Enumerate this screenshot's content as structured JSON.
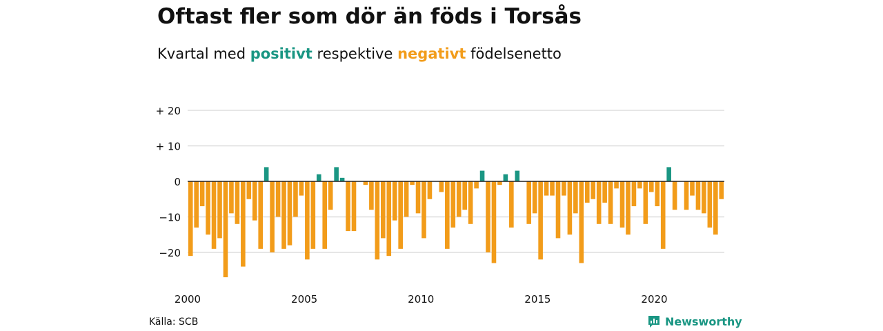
{
  "header": {
    "title": "Oftast fler som dör än föds i Torsås",
    "subtitle_prefix": "Kvartal med",
    "subtitle_positive": "positivt",
    "subtitle_middle": "respektive",
    "subtitle_negative": "negativt",
    "subtitle_suffix": "födelsenetto"
  },
  "footer": {
    "source": "Källa: SCB",
    "brand": "Newsworthy",
    "brand_icon": "bar-chart-icon"
  },
  "colors": {
    "positive": "#1a9683",
    "negative": "#f29c1a",
    "grid": "#dddddd",
    "zero_line": "#222222",
    "text": "#111111"
  },
  "chart_data": {
    "type": "bar",
    "title": "Oftast fler som dör än föds i Torsås",
    "subtitle": "Kvartal med positivt respektive negativt födelsenetto",
    "xlabel": "",
    "ylabel": "",
    "ylim": [
      -28,
      22
    ],
    "y_ticks": [
      {
        "value": 20,
        "label": "+ 20"
      },
      {
        "value": 10,
        "label": "+ 10"
      },
      {
        "value": 0,
        "label": "0"
      },
      {
        "value": -10,
        "label": "−10"
      },
      {
        "value": -20,
        "label": "−20"
      }
    ],
    "x_ticks": [
      "2000",
      "2005",
      "2010",
      "2015",
      "2020"
    ],
    "start_year": 2000,
    "end_year": 2023,
    "legend": "none",
    "grid": true,
    "values": [
      -21,
      -13,
      -7,
      -15,
      -19,
      -16,
      -27,
      -9,
      -12,
      -24,
      -5,
      -11,
      -19,
      4,
      -20,
      -10,
      -19,
      -18,
      -10,
      -4,
      -22,
      -19,
      2,
      -19,
      -8,
      4,
      1,
      -14,
      -14,
      0,
      -1,
      -8,
      -22,
      -16,
      -21,
      -11,
      -19,
      -10,
      -1,
      -9,
      -16,
      -5,
      0,
      -3,
      -19,
      -13,
      -10,
      -8,
      -12,
      -2,
      3,
      -20,
      -23,
      -1,
      2,
      -13,
      3,
      0,
      -12,
      -9,
      -22,
      -4,
      -4,
      -16,
      -4,
      -15,
      -9,
      -23,
      -6,
      -5,
      -12,
      -6,
      -12,
      -2,
      -13,
      -15,
      -7,
      -2,
      -12,
      -3,
      -7,
      -19,
      4,
      -8,
      0,
      -8,
      -4,
      -8,
      -9,
      -13,
      -15,
      -5
    ]
  }
}
